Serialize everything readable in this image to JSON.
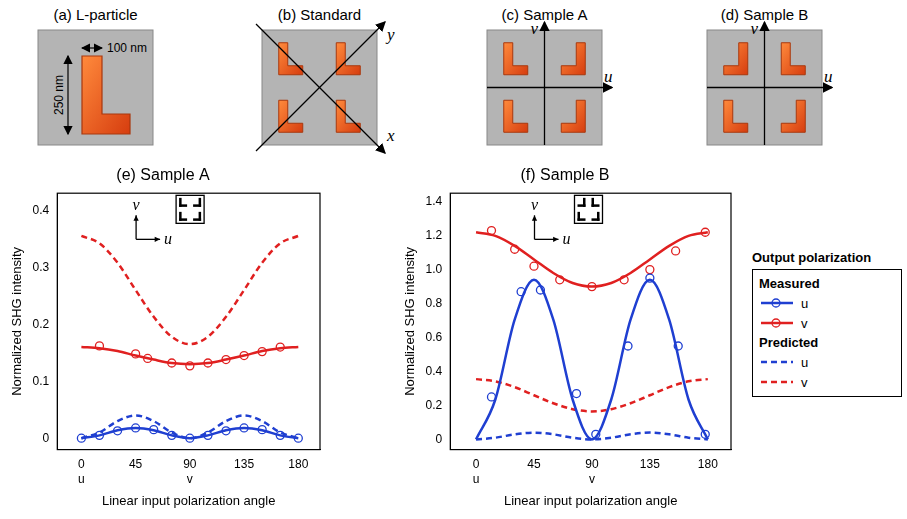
{
  "diagrams": [
    {
      "title": "(a) L-particle",
      "width_label": "100 nm",
      "height_label": "250 nm"
    },
    {
      "title": "(b) Standard",
      "axes": [
        "x",
        "y"
      ]
    },
    {
      "title": "(c) Sample A",
      "axes": [
        "u",
        "v"
      ]
    },
    {
      "title": "(d) Sample B",
      "axes": [
        "u",
        "v"
      ]
    }
  ],
  "legend_panel": {
    "title": "Output polarization",
    "groups": [
      "Measured",
      "Predicted"
    ]
  },
  "chart_data": [
    {
      "type": "line",
      "title": "(e) Sample A",
      "xlabel": "Linear input polarization angle",
      "ylabel": "Normalized SHG intensity",
      "inset_axes": [
        "u",
        "v"
      ],
      "xlim": [
        -20,
        198
      ],
      "xticks": [
        {
          "value": 0,
          "label": "0\nu"
        },
        45,
        {
          "value": 90,
          "label": "90\nv"
        },
        135,
        180
      ],
      "ylim": [
        -0.02,
        0.43
      ],
      "yticks": [
        0,
        0.1,
        0.2,
        0.3,
        0.4
      ],
      "grid": false,
      "series": [
        {
          "name": "u",
          "legend_group": "Measured",
          "color": "#1f3fd1",
          "line_style": "solid",
          "marker": "circle",
          "x": [
            0,
            15,
            30,
            45,
            60,
            75,
            90,
            105,
            120,
            135,
            150,
            165,
            180
          ],
          "values": [
            0,
            0.005,
            0.013,
            0.018,
            0.015,
            0.005,
            0,
            0.005,
            0.013,
            0.018,
            0.015,
            0.005,
            0
          ],
          "fit_x": [
            0,
            15,
            30,
            45,
            60,
            75,
            90,
            105,
            120,
            135,
            150,
            165,
            180
          ],
          "fit": [
            0,
            0.005,
            0.014,
            0.018,
            0.014,
            0.005,
            0,
            0.005,
            0.014,
            0.018,
            0.014,
            0.005,
            0
          ]
        },
        {
          "name": "v",
          "legend_group": "Measured",
          "color": "#e02020",
          "line_style": "solid",
          "marker": "circle",
          "x": [
            15,
            45,
            55,
            75,
            90,
            105,
            120,
            135,
            150,
            165
          ],
          "values": [
            0.162,
            0.148,
            0.14,
            0.132,
            0.127,
            0.132,
            0.138,
            0.145,
            0.152,
            0.16
          ],
          "fit_x": [
            0,
            15,
            30,
            45,
            60,
            75,
            90,
            105,
            120,
            135,
            150,
            165,
            180
          ],
          "fit": [
            0.16,
            0.158,
            0.153,
            0.145,
            0.138,
            0.132,
            0.13,
            0.132,
            0.138,
            0.145,
            0.153,
            0.158,
            0.16
          ]
        },
        {
          "name": "u",
          "legend_group": "Predicted",
          "color": "#1f3fd1",
          "line_style": "dashed",
          "marker": "none",
          "x": [
            0,
            15,
            30,
            45,
            60,
            75,
            90,
            105,
            120,
            135,
            150,
            165,
            180
          ],
          "values": [
            0,
            0.01,
            0.03,
            0.04,
            0.03,
            0.01,
            0,
            0.01,
            0.03,
            0.04,
            0.03,
            0.01,
            0
          ]
        },
        {
          "name": "v",
          "legend_group": "Predicted",
          "color": "#e02020",
          "line_style": "dashed",
          "marker": "none",
          "x": [
            0,
            15,
            30,
            45,
            60,
            75,
            90,
            105,
            120,
            135,
            150,
            165,
            180
          ],
          "values": [
            0.355,
            0.342,
            0.308,
            0.26,
            0.213,
            0.178,
            0.165,
            0.178,
            0.213,
            0.26,
            0.308,
            0.342,
            0.355
          ]
        }
      ]
    },
    {
      "type": "line",
      "title": "(f) Sample B",
      "xlabel": "Linear input polarization angle",
      "ylabel": "Normalized SHG intensity",
      "inset_axes": [
        "u",
        "v"
      ],
      "legend": "right",
      "xlim": [
        -20,
        198
      ],
      "xticks": [
        {
          "value": 0,
          "label": "0\nu"
        },
        45,
        {
          "value": 90,
          "label": "90\nv"
        },
        135,
        180
      ],
      "ylim": [
        -0.06,
        1.45
      ],
      "yticks": [
        0,
        0.2,
        0.4,
        0.6,
        0.8,
        {
          "value": 1,
          "label": "1.0"
        },
        1.2,
        1.4
      ],
      "grid": false,
      "series": [
        {
          "name": "u",
          "legend_group": "Measured",
          "color": "#1f3fd1",
          "line_style": "solid",
          "marker": "circle",
          "x": [
            12,
            35,
            50,
            78,
            93,
            118,
            135,
            157,
            178
          ],
          "values": [
            0.25,
            0.87,
            0.88,
            0.27,
            0.03,
            0.55,
            0.95,
            0.55,
            0.03
          ],
          "fit_x": [
            0,
            15,
            30,
            45,
            60,
            75,
            90,
            105,
            120,
            135,
            150,
            165,
            180
          ],
          "fit": [
            0,
            0.235,
            0.705,
            0.94,
            0.705,
            0.235,
            0,
            0.235,
            0.705,
            0.94,
            0.705,
            0.235,
            0
          ]
        },
        {
          "name": "v",
          "legend_group": "Measured",
          "color": "#e02020",
          "line_style": "solid",
          "marker": "circle",
          "x": [
            12,
            30,
            45,
            65,
            90,
            115,
            135,
            155,
            178
          ],
          "values": [
            1.23,
            1.12,
            1.02,
            0.94,
            0.9,
            0.94,
            1.0,
            1.11,
            1.22
          ],
          "fit_x": [
            0,
            15,
            30,
            45,
            60,
            75,
            90,
            105,
            120,
            135,
            150,
            165,
            180
          ],
          "fit": [
            1.22,
            1.199,
            1.14,
            1.06,
            0.98,
            0.921,
            0.9,
            0.921,
            0.98,
            1.06,
            1.14,
            1.199,
            1.22
          ]
        },
        {
          "name": "u",
          "legend_group": "Predicted",
          "color": "#1f3fd1",
          "line_style": "dashed",
          "marker": "none",
          "x": [
            0,
            15,
            30,
            45,
            60,
            75,
            90,
            105,
            120,
            135,
            150,
            165,
            180
          ],
          "values": [
            0,
            0.01,
            0.03,
            0.04,
            0.03,
            0.01,
            0,
            0.01,
            0.03,
            0.04,
            0.03,
            0.01,
            0
          ]
        },
        {
          "name": "v",
          "legend_group": "Predicted",
          "color": "#e02020",
          "line_style": "dashed",
          "marker": "none",
          "x": [
            0,
            15,
            30,
            45,
            60,
            75,
            90,
            105,
            120,
            135,
            150,
            165,
            180
          ],
          "values": [
            0.355,
            0.342,
            0.308,
            0.26,
            0.213,
            0.178,
            0.165,
            0.178,
            0.213,
            0.26,
            0.308,
            0.342,
            0.355
          ]
        }
      ]
    }
  ]
}
